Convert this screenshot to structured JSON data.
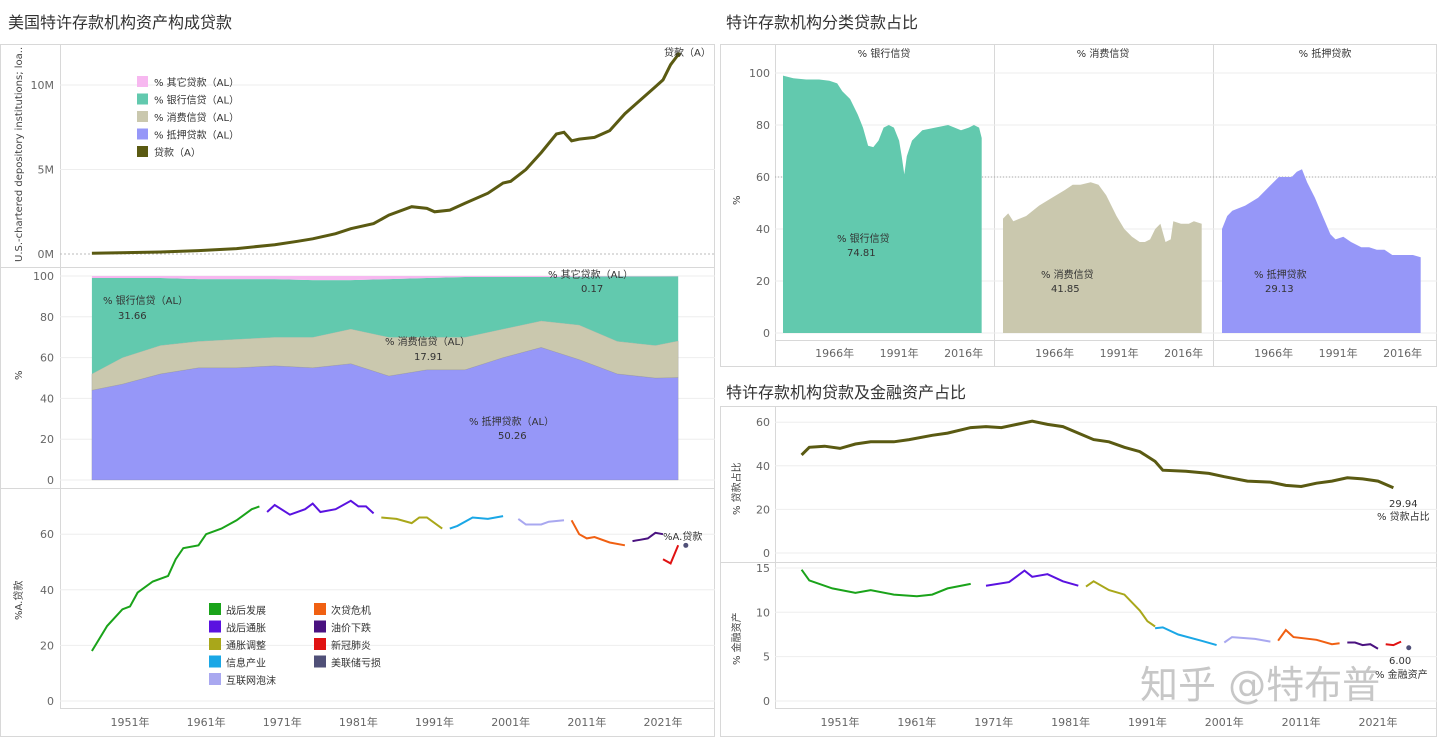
{
  "titles": {
    "left": "美国特许存款机构资产构成贷款",
    "right_top": "特许存款机构分类贷款占比",
    "right_bottom": "特许存款机构贷款及金融资产占比"
  },
  "watermark": "知乎 @特布普",
  "colors": {
    "loan_line": "#5a5a12",
    "other": "#f7b8f0",
    "bank": "#62c9ae",
    "consumer": "#cac8ae",
    "mortgage": "#9697f8",
    "eras": {
      "战后发展": "#1aa31a",
      "战后通胀": "#5a12e0",
      "通胀调整": "#a9a71a",
      "信息产业": "#1aa7e6",
      "互联网泡沫": "#a9a8f0",
      "次贷危机": "#f06012",
      "油价下跌": "#4a1280",
      "新冠肺炎": "#e01212",
      "美联储亏损": "#505078"
    }
  },
  "chart_data": [
    {
      "id": "loans",
      "type": "line",
      "ylabel": "U.S.-chartered depository institutions; loa..",
      "yticks": [
        "0M",
        "5M",
        "10M"
      ],
      "ytick_values": [
        0,
        5,
        10
      ],
      "legend": [
        "% 其它贷款（AL）",
        "% 银行信贷（AL）",
        "% 消费信贷（AL）",
        "% 抵押贷款（AL）",
        "贷款（A）"
      ],
      "end_label": "贷款（A）",
      "series": [
        {
          "name": "贷款（A）",
          "unit": "M",
          "x": [
            1946,
            1955,
            1960,
            1965,
            1970,
            1973,
            1975,
            1978,
            1980,
            1983,
            1985,
            1988,
            1990,
            1991,
            1993,
            1995,
            1998,
            2000,
            2001,
            2003,
            2005,
            2007,
            2008,
            2009,
            2010,
            2012,
            2014,
            2016,
            2018,
            2020,
            2021,
            2022,
            2023
          ],
          "y": [
            0.05,
            0.12,
            0.2,
            0.32,
            0.55,
            0.75,
            0.9,
            1.2,
            1.5,
            1.8,
            2.3,
            2.8,
            2.7,
            2.5,
            2.6,
            3.0,
            3.6,
            4.2,
            4.3,
            5.0,
            6.0,
            7.1,
            7.2,
            6.7,
            6.8,
            6.9,
            7.3,
            8.3,
            9.1,
            9.9,
            10.3,
            11.2,
            11.8
          ]
        }
      ]
    },
    {
      "id": "composition",
      "type": "area",
      "stacked": true,
      "ylabel": "%",
      "yticks": [
        "0",
        "20",
        "40",
        "60",
        "80",
        "100"
      ],
      "ytick_values": [
        0,
        20,
        40,
        60,
        80,
        100
      ],
      "x": [
        1946,
        1950,
        1955,
        1960,
        1965,
        1970,
        1975,
        1980,
        1985,
        1990,
        1995,
        2000,
        2005,
        2010,
        2015,
        2020,
        2023
      ],
      "series": [
        {
          "name": "% 抵押贷款（AL）",
          "last": "50.26",
          "values": [
            44,
            47,
            52,
            55,
            55,
            56,
            55,
            57,
            51,
            54,
            54,
            60,
            65,
            59,
            52,
            50,
            50.26
          ]
        },
        {
          "name": "% 消费信贷（AL）",
          "last": "17.91",
          "values": [
            8,
            13,
            14,
            13,
            14,
            14,
            15,
            17,
            19,
            16,
            16,
            14,
            13,
            17,
            16,
            16,
            17.91
          ]
        },
        {
          "name": "% 银行信贷（AL）",
          "last": "31.66",
          "values": [
            47,
            39,
            33,
            30.5,
            29.5,
            28.5,
            28,
            24,
            28.5,
            29,
            29.5,
            25.5,
            21.5,
            23.7,
            31.8,
            33.8,
            31.66
          ]
        },
        {
          "name": "% 其它贷款（AL）",
          "last": "0.17",
          "values": [
            1,
            1,
            1,
            1.5,
            1.5,
            1.5,
            2,
            2,
            1.5,
            1,
            0.5,
            0.5,
            0.5,
            0.3,
            0.2,
            0.2,
            0.17
          ]
        }
      ]
    },
    {
      "id": "loan_share_eras",
      "type": "line",
      "ylabel": "%A.贷款",
      "yticks": [
        "0",
        "20",
        "40",
        "60"
      ],
      "ytick_values": [
        0,
        20,
        40,
        60
      ],
      "xticks": [
        "1951年",
        "1961年",
        "1971年",
        "1981年",
        "1991年",
        "2001年",
        "2011年",
        "2021年"
      ],
      "xtick_values": [
        1951,
        1961,
        1971,
        1981,
        1991,
        2001,
        2011,
        2021
      ],
      "end_label": "%A.贷款",
      "legend_left": [
        "战后发展",
        "战后通胀",
        "通胀调整",
        "信息产业",
        "互联网泡沫"
      ],
      "legend_right": [
        "次贷危机",
        "油价下跌",
        "新冠肺炎",
        "美联储亏损"
      ],
      "series": [
        {
          "name": "战后发展",
          "x": [
            1946,
            1948,
            1950,
            1951,
            1952,
            1954,
            1956,
            1957,
            1958,
            1960,
            1961,
            1963,
            1965,
            1967,
            1968
          ],
          "y": [
            18,
            27,
            33,
            34,
            39,
            43,
            45,
            51,
            55,
            56,
            60,
            62,
            65,
            69,
            70
          ]
        },
        {
          "name": "战后通胀",
          "x": [
            1969,
            1970,
            1972,
            1974,
            1975,
            1976,
            1978,
            1980,
            1981,
            1982,
            1983
          ],
          "y": [
            68,
            70.5,
            67,
            69,
            71,
            68,
            69,
            72,
            70,
            70,
            67.5
          ]
        },
        {
          "name": "通胀调整",
          "x": [
            1984,
            1986,
            1988,
            1989,
            1990,
            1992
          ],
          "y": [
            66,
            65.5,
            64,
            66,
            66,
            62
          ]
        },
        {
          "name": "信息产业",
          "x": [
            1993,
            1994,
            1996,
            1998,
            2000
          ],
          "y": [
            62,
            63,
            66,
            65.5,
            66.5
          ]
        },
        {
          "name": "互联网泡沫",
          "x": [
            2002,
            2003,
            2005,
            2006,
            2008
          ],
          "y": [
            65.5,
            63.5,
            63.5,
            64.5,
            65
          ]
        },
        {
          "name": "次贷危机",
          "x": [
            2009,
            2010,
            2011,
            2012,
            2014,
            2016
          ],
          "y": [
            65,
            60,
            58.5,
            59,
            57,
            56
          ]
        },
        {
          "name": "油价下跌",
          "x": [
            2017,
            2018,
            2019,
            2020,
            2021
          ],
          "y": [
            57.5,
            58,
            58.5,
            60.5,
            60
          ]
        },
        {
          "name": "新冠肺炎",
          "x": [
            2021,
            2022,
            2023
          ],
          "y": [
            51,
            49.5,
            56
          ]
        },
        {
          "name": "美联储亏损",
          "x": [
            2024
          ],
          "y": [
            56
          ]
        }
      ]
    },
    {
      "id": "category_share",
      "type": "area",
      "ylabel": "%",
      "yticks": [
        "0",
        "20",
        "40",
        "60",
        "80",
        "100"
      ],
      "ytick_values": [
        0,
        20,
        40,
        60,
        80,
        100
      ],
      "reference_line": 60,
      "xticks": [
        "1966年",
        "1991年",
        "2016年"
      ],
      "xtick_values": [
        1966,
        1991,
        2016
      ],
      "panels": [
        {
          "name": "% 银行信贷",
          "last": "74.81",
          "x": [
            1946,
            1950,
            1955,
            1960,
            1964,
            1967,
            1969,
            1972,
            1975,
            1977,
            1979,
            1981,
            1983,
            1985,
            1987,
            1989,
            1991,
            1992,
            1993,
            1994,
            1996,
            2000,
            2005,
            2010,
            2015,
            2018,
            2020,
            2022,
            2023
          ],
          "y": [
            99,
            98,
            97.5,
            97.5,
            97,
            96,
            93,
            90,
            84,
            79,
            72,
            71.5,
            74,
            79,
            80,
            79,
            74,
            68,
            61,
            68,
            74,
            78,
            79,
            80,
            78,
            79,
            80,
            79,
            75
          ]
        },
        {
          "name": "% 消费信贷",
          "last": "41.85",
          "x": [
            1946,
            1948,
            1950,
            1955,
            1960,
            1965,
            1970,
            1973,
            1976,
            1980,
            1983,
            1986,
            1990,
            1993,
            1996,
            1999,
            2001,
            2003,
            2005,
            2007,
            2009,
            2011,
            2012,
            2015,
            2018,
            2020,
            2023
          ],
          "y": [
            44,
            46,
            43,
            45,
            49,
            52,
            55,
            57,
            57,
            58,
            57,
            53,
            45,
            40,
            37,
            35,
            35,
            36,
            40,
            42,
            35,
            36,
            43,
            42,
            42,
            43,
            42
          ]
        },
        {
          "name": "% 抵押贷款",
          "last": "29.13",
          "x": [
            1946,
            1948,
            1950,
            1955,
            1960,
            1964,
            1968,
            1970,
            1973,
            1975,
            1977,
            1979,
            1982,
            1985,
            1988,
            1990,
            1993,
            1996,
            2000,
            2003,
            2006,
            2009,
            2012,
            2015,
            2018,
            2020,
            2023
          ],
          "y": [
            40,
            45,
            47,
            49,
            52,
            56,
            60,
            60,
            60,
            62,
            63,
            58,
            52,
            45,
            38,
            36,
            37,
            35,
            33,
            33,
            32,
            32,
            30,
            30,
            30,
            30,
            29.13
          ]
        }
      ]
    },
    {
      "id": "loan_financial_share",
      "type": "line",
      "upper": {
        "ylabel": "% 贷款占比",
        "yticks": [
          "0",
          "20",
          "40",
          "60"
        ],
        "ytick_values": [
          0,
          20,
          40,
          60
        ],
        "last": "29.94",
        "end_label": "% 贷款占比",
        "x": [
          1946,
          1947,
          1949,
          1951,
          1953,
          1955,
          1958,
          1960,
          1963,
          1965,
          1968,
          1970,
          1972,
          1974,
          1976,
          1978,
          1980,
          1982,
          1984,
          1986,
          1988,
          1990,
          1992,
          1993,
          1996,
          1999,
          2001,
          2004,
          2007,
          2009,
          2011,
          2013,
          2015,
          2017,
          2019,
          2021,
          2023
        ],
        "y": [
          45,
          48.5,
          49,
          48,
          50,
          51,
          51,
          52,
          54,
          55,
          57.5,
          58,
          57.5,
          59,
          60.5,
          59,
          58,
          55,
          52,
          51,
          48.5,
          46.5,
          42,
          38,
          37.5,
          36.5,
          35,
          33,
          32.5,
          31,
          30.5,
          32,
          33,
          34.5,
          34,
          33,
          29.94
        ]
      },
      "lower": {
        "ylabel": "% 金融资产",
        "yticks": [
          "0",
          "5",
          "10",
          "15"
        ],
        "ytick_values": [
          0,
          5,
          10,
          15
        ],
        "last": "6.00",
        "end_label": "% 金融资产",
        "xticks": [
          "1951年",
          "1961年",
          "1971年",
          "1981年",
          "1991年",
          "2001年",
          "2011年",
          "2021年"
        ],
        "xtick_values": [
          1951,
          1961,
          1971,
          1981,
          1991,
          2001,
          2011,
          2021
        ],
        "series": [
          {
            "name": "战后发展",
            "x": [
              1946,
              1947,
              1950,
              1953,
              1955,
              1958,
              1961,
              1963,
              1965,
              1968
            ],
            "y": [
              14.8,
              13.6,
              12.7,
              12.2,
              12.5,
              12.0,
              11.8,
              12.0,
              12.7,
              13.2
            ]
          },
          {
            "name": "战后通胀",
            "x": [
              1970,
              1973,
              1975,
              1976,
              1978,
              1980,
              1982
            ],
            "y": [
              13.0,
              13.4,
              14.7,
              14.0,
              14.3,
              13.5,
              13.0
            ]
          },
          {
            "name": "通胀调整",
            "x": [
              1983,
              1984,
              1986,
              1988,
              1990,
              1991,
              1992
            ],
            "y": [
              12.9,
              13.5,
              12.5,
              12.0,
              10.2,
              9.0,
              8.4
            ]
          },
          {
            "name": "信息产业",
            "x": [
              1992,
              1993,
              1995,
              1998,
              2000
            ],
            "y": [
              8.2,
              8.3,
              7.5,
              6.8,
              6.3
            ]
          },
          {
            "name": "互联网泡沫",
            "x": [
              2001,
              2002,
              2005,
              2007
            ],
            "y": [
              6.6,
              7.2,
              7.0,
              6.7
            ]
          },
          {
            "name": "次贷危机",
            "x": [
              2008,
              2009,
              2010,
              2013,
              2015,
              2016
            ],
            "y": [
              6.8,
              8.0,
              7.2,
              6.9,
              6.4,
              6.5
            ]
          },
          {
            "name": "油价下跌",
            "x": [
              2017,
              2018,
              2019,
              2020,
              2021
            ],
            "y": [
              6.6,
              6.6,
              6.3,
              6.4,
              5.9
            ]
          },
          {
            "name": "新冠肺炎",
            "x": [
              2022,
              2023,
              2024
            ],
            "y": [
              6.4,
              6.3,
              6.7
            ]
          },
          {
            "name": "美联储亏损",
            "x": [
              2025
            ],
            "y": [
              6.0
            ]
          }
        ]
      }
    }
  ]
}
